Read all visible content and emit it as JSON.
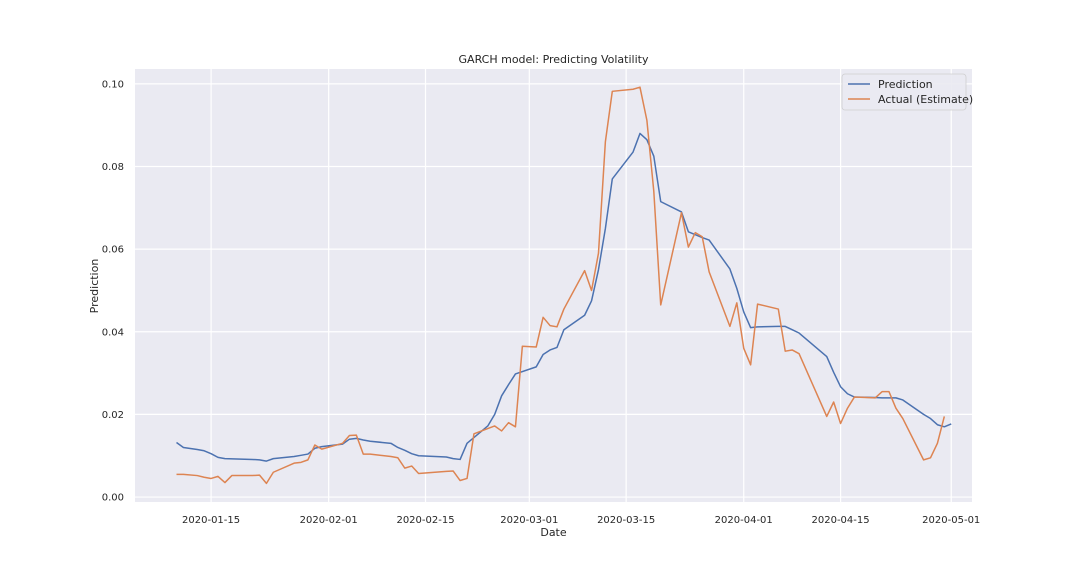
{
  "chart_data": {
    "type": "line",
    "title": "GARCH model: Predicting Volatility",
    "xlabel": "Date",
    "ylabel": "Prediction",
    "xlim": [
      "2020-01-04",
      "2020-05-04"
    ],
    "ylim": [
      -0.0012,
      0.1036
    ],
    "x_ticks": [
      "2020-01-15",
      "2020-02-01",
      "2020-02-15",
      "2020-03-01",
      "2020-03-15",
      "2020-04-01",
      "2020-04-15",
      "2020-05-01"
    ],
    "y_ticks": [
      0.0,
      0.02,
      0.04,
      0.06,
      0.08,
      0.1
    ],
    "y_tick_labels": [
      "0.00",
      "0.02",
      "0.04",
      "0.06",
      "0.08",
      "0.10"
    ],
    "grid": true,
    "legend_position": "top-right",
    "series": [
      {
        "name": "Prediction",
        "color": "#4c72b0",
        "points": [
          [
            "2020-01-10",
            0.0132
          ],
          [
            "2020-01-11",
            0.012
          ],
          [
            "2020-01-13",
            0.0115
          ],
          [
            "2020-01-14",
            0.0112
          ],
          [
            "2020-01-15",
            0.0105
          ],
          [
            "2020-01-16",
            0.0096
          ],
          [
            "2020-01-17",
            0.0093
          ],
          [
            "2020-01-21",
            0.0091
          ],
          [
            "2020-01-22",
            0.009
          ],
          [
            "2020-01-23",
            0.0087
          ],
          [
            "2020-01-24",
            0.0093
          ],
          [
            "2020-01-27",
            0.0098
          ],
          [
            "2020-01-28",
            0.0101
          ],
          [
            "2020-01-29",
            0.0104
          ],
          [
            "2020-01-30",
            0.0118
          ],
          [
            "2020-01-31",
            0.0122
          ],
          [
            "2020-02-03",
            0.0128
          ],
          [
            "2020-02-04",
            0.014
          ],
          [
            "2020-02-05",
            0.0142
          ],
          [
            "2020-02-06",
            0.0138
          ],
          [
            "2020-02-07",
            0.0135
          ],
          [
            "2020-02-10",
            0.013
          ],
          [
            "2020-02-11",
            0.012
          ],
          [
            "2020-02-12",
            0.0113
          ],
          [
            "2020-02-13",
            0.0105
          ],
          [
            "2020-02-14",
            0.01
          ],
          [
            "2020-02-18",
            0.0097
          ],
          [
            "2020-02-19",
            0.0093
          ],
          [
            "2020-02-20",
            0.0091
          ],
          [
            "2020-02-21",
            0.013
          ],
          [
            "2020-02-24",
            0.0172
          ],
          [
            "2020-02-25",
            0.02
          ],
          [
            "2020-02-26",
            0.0245
          ],
          [
            "2020-02-27",
            0.0272
          ],
          [
            "2020-02-28",
            0.0298
          ],
          [
            "2020-03-02",
            0.0315
          ],
          [
            "2020-03-03",
            0.0345
          ],
          [
            "2020-03-04",
            0.0356
          ],
          [
            "2020-03-05",
            0.0362
          ],
          [
            "2020-03-06",
            0.0405
          ],
          [
            "2020-03-09",
            0.044
          ],
          [
            "2020-03-10",
            0.0475
          ],
          [
            "2020-03-11",
            0.055
          ],
          [
            "2020-03-12",
            0.065
          ],
          [
            "2020-03-13",
            0.077
          ],
          [
            "2020-03-16",
            0.0835
          ],
          [
            "2020-03-17",
            0.088
          ],
          [
            "2020-03-18",
            0.0865
          ],
          [
            "2020-03-19",
            0.0825
          ],
          [
            "2020-03-20",
            0.0715
          ],
          [
            "2020-03-23",
            0.069
          ],
          [
            "2020-03-24",
            0.0642
          ],
          [
            "2020-03-25",
            0.0635
          ],
          [
            "2020-03-26",
            0.0628
          ],
          [
            "2020-03-27",
            0.0622
          ],
          [
            "2020-03-30",
            0.0552
          ],
          [
            "2020-03-31",
            0.0505
          ],
          [
            "2020-04-01",
            0.0448
          ],
          [
            "2020-04-02",
            0.041
          ],
          [
            "2020-04-03",
            0.0412
          ],
          [
            "2020-04-06",
            0.0413
          ],
          [
            "2020-04-07",
            0.0413
          ],
          [
            "2020-04-08",
            0.0405
          ],
          [
            "2020-04-09",
            0.0397
          ],
          [
            "2020-04-13",
            0.034
          ],
          [
            "2020-04-14",
            0.0302
          ],
          [
            "2020-04-15",
            0.0267
          ],
          [
            "2020-04-16",
            0.025
          ],
          [
            "2020-04-17",
            0.0242
          ],
          [
            "2020-04-20",
            0.0241
          ],
          [
            "2020-04-21",
            0.024
          ],
          [
            "2020-04-22",
            0.024
          ],
          [
            "2020-04-23",
            0.024
          ],
          [
            "2020-04-24",
            0.0235
          ],
          [
            "2020-04-27",
            0.02
          ],
          [
            "2020-04-28",
            0.019
          ],
          [
            "2020-04-29",
            0.0175
          ],
          [
            "2020-04-30",
            0.017
          ],
          [
            "2020-05-01",
            0.0177
          ]
        ]
      },
      {
        "name": "Actual (Estimate)",
        "color": "#dd8452",
        "points": [
          [
            "2020-01-10",
            0.0055
          ],
          [
            "2020-01-11",
            0.0055
          ],
          [
            "2020-01-13",
            0.0052
          ],
          [
            "2020-01-14",
            0.0048
          ],
          [
            "2020-01-15",
            0.0045
          ],
          [
            "2020-01-16",
            0.005
          ],
          [
            "2020-01-17",
            0.0035
          ],
          [
            "2020-01-18",
            0.0052
          ],
          [
            "2020-01-21",
            0.0052
          ],
          [
            "2020-01-22",
            0.0053
          ],
          [
            "2020-01-23",
            0.0033
          ],
          [
            "2020-01-24",
            0.006
          ],
          [
            "2020-01-27",
            0.0082
          ],
          [
            "2020-01-28",
            0.0084
          ],
          [
            "2020-01-29",
            0.009
          ],
          [
            "2020-01-30",
            0.0126
          ],
          [
            "2020-01-31",
            0.0116
          ],
          [
            "2020-02-03",
            0.013
          ],
          [
            "2020-02-04",
            0.0149
          ],
          [
            "2020-02-05",
            0.015
          ],
          [
            "2020-02-06",
            0.0104
          ],
          [
            "2020-02-07",
            0.0104
          ],
          [
            "2020-02-10",
            0.0098
          ],
          [
            "2020-02-11",
            0.0095
          ],
          [
            "2020-02-12",
            0.007
          ],
          [
            "2020-02-13",
            0.0075
          ],
          [
            "2020-02-14",
            0.0057
          ],
          [
            "2020-02-18",
            0.0062
          ],
          [
            "2020-02-19",
            0.0063
          ],
          [
            "2020-02-20",
            0.004
          ],
          [
            "2020-02-21",
            0.0045
          ],
          [
            "2020-02-22",
            0.0153
          ],
          [
            "2020-02-25",
            0.0172
          ],
          [
            "2020-02-26",
            0.016
          ],
          [
            "2020-02-27",
            0.018
          ],
          [
            "2020-02-28",
            0.017
          ],
          [
            "2020-02-29",
            0.0365
          ],
          [
            "2020-03-02",
            0.0363
          ],
          [
            "2020-03-03",
            0.0435
          ],
          [
            "2020-03-04",
            0.0415
          ],
          [
            "2020-03-05",
            0.0412
          ],
          [
            "2020-03-06",
            0.0455
          ],
          [
            "2020-03-09",
            0.0548
          ],
          [
            "2020-03-10",
            0.05
          ],
          [
            "2020-03-11",
            0.059
          ],
          [
            "2020-03-12",
            0.086
          ],
          [
            "2020-03-13",
            0.0982
          ],
          [
            "2020-03-16",
            0.0987
          ],
          [
            "2020-03-17",
            0.0992
          ],
          [
            "2020-03-18",
            0.0912
          ],
          [
            "2020-03-19",
            0.074
          ],
          [
            "2020-03-20",
            0.0465
          ],
          [
            "2020-03-23",
            0.0688
          ],
          [
            "2020-03-24",
            0.0605
          ],
          [
            "2020-03-25",
            0.064
          ],
          [
            "2020-03-26",
            0.063
          ],
          [
            "2020-03-27",
            0.0545
          ],
          [
            "2020-03-30",
            0.0413
          ],
          [
            "2020-03-31",
            0.047
          ],
          [
            "2020-04-01",
            0.036
          ],
          [
            "2020-04-02",
            0.032
          ],
          [
            "2020-04-03",
            0.0467
          ],
          [
            "2020-04-06",
            0.0455
          ],
          [
            "2020-04-07",
            0.0353
          ],
          [
            "2020-04-08",
            0.0356
          ],
          [
            "2020-04-09",
            0.0347
          ],
          [
            "2020-04-13",
            0.0195
          ],
          [
            "2020-04-14",
            0.023
          ],
          [
            "2020-04-15",
            0.0178
          ],
          [
            "2020-04-16",
            0.0215
          ],
          [
            "2020-04-17",
            0.0242
          ],
          [
            "2020-04-20",
            0.024
          ],
          [
            "2020-04-21",
            0.0255
          ],
          [
            "2020-04-22",
            0.0255
          ],
          [
            "2020-04-23",
            0.0215
          ],
          [
            "2020-04-24",
            0.019
          ],
          [
            "2020-04-27",
            0.009
          ],
          [
            "2020-04-28",
            0.0095
          ],
          [
            "2020-04-29",
            0.013
          ],
          [
            "2020-04-30",
            0.0195
          ]
        ]
      }
    ]
  }
}
